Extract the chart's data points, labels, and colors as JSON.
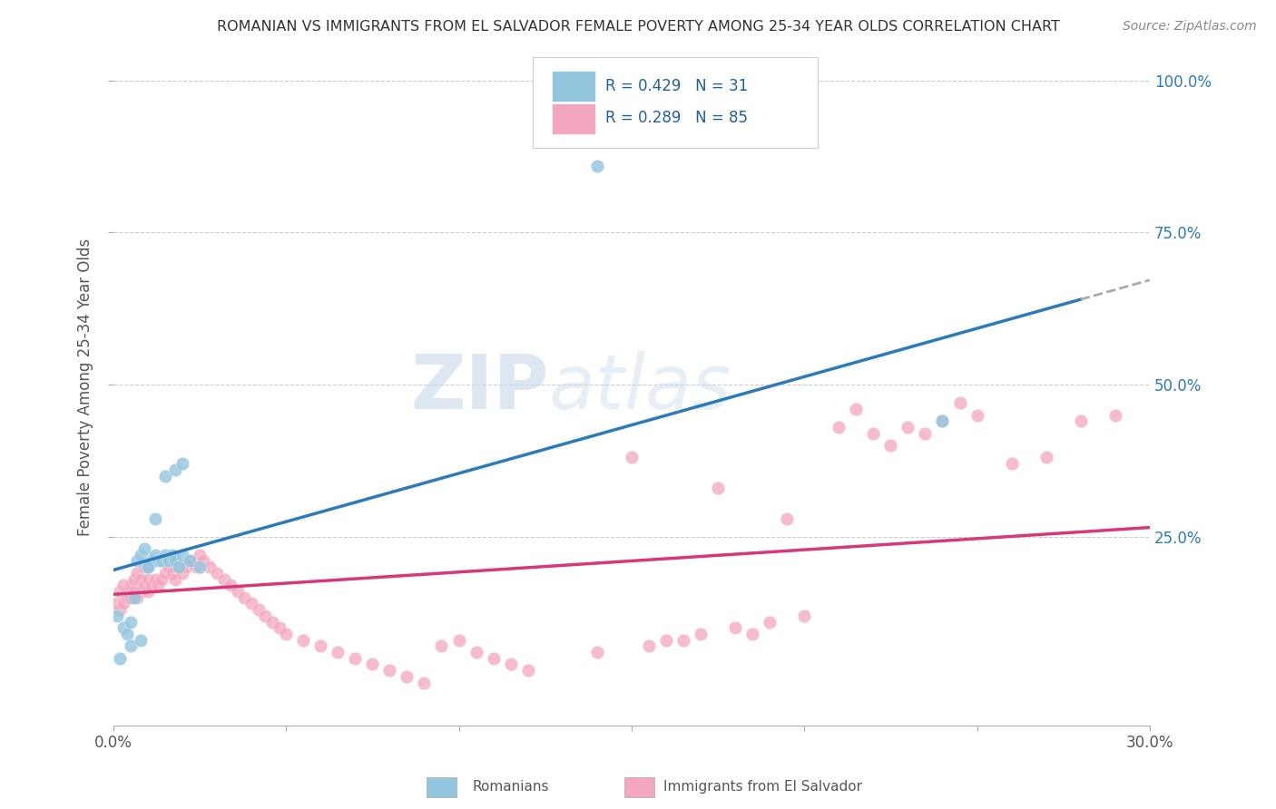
{
  "title": "ROMANIAN VS IMMIGRANTS FROM EL SALVADOR FEMALE POVERTY AMONG 25-34 YEAR OLDS CORRELATION CHART",
  "source": "Source: ZipAtlas.com",
  "ylabel": "Female Poverty Among 25-34 Year Olds",
  "ytick_labels": [
    "100.0%",
    "75.0%",
    "50.0%",
    "25.0%"
  ],
  "ytick_values": [
    1.0,
    0.75,
    0.5,
    0.25
  ],
  "watermark_text": "ZIP",
  "watermark_text2": "atlas",
  "blue_color": "#92c5de",
  "pink_color": "#f4a6be",
  "blue_line_color": "#2b7bba",
  "pink_line_color": "#d63878",
  "dashed_line_color": "#aaaaaa",
  "legend_R1": "R = 0.429",
  "legend_N1": "N = 31",
  "legend_R2": "R = 0.289",
  "legend_N2": "N = 85",
  "legend_label1": "Romanians",
  "legend_label2": "Immigrants from El Salvador",
  "blue_scatter_x": [
    0.001,
    0.002,
    0.003,
    0.004,
    0.005,
    0.006,
    0.007,
    0.008,
    0.009,
    0.01,
    0.011,
    0.012,
    0.013,
    0.014,
    0.015,
    0.016,
    0.017,
    0.018,
    0.019,
    0.02,
    0.022,
    0.025,
    0.005,
    0.008,
    0.01,
    0.012,
    0.015,
    0.018,
    0.02,
    0.14,
    0.24
  ],
  "blue_scatter_y": [
    0.12,
    0.05,
    0.1,
    0.09,
    0.11,
    0.15,
    0.21,
    0.22,
    0.23,
    0.2,
    0.21,
    0.22,
    0.21,
    0.21,
    0.22,
    0.21,
    0.22,
    0.21,
    0.2,
    0.22,
    0.21,
    0.2,
    0.07,
    0.08,
    0.2,
    0.28,
    0.35,
    0.36,
    0.37,
    0.86,
    0.44
  ],
  "pink_scatter_x": [
    0.001,
    0.002,
    0.002,
    0.003,
    0.003,
    0.004,
    0.004,
    0.005,
    0.005,
    0.006,
    0.006,
    0.007,
    0.007,
    0.008,
    0.008,
    0.009,
    0.009,
    0.01,
    0.01,
    0.011,
    0.012,
    0.013,
    0.014,
    0.015,
    0.016,
    0.017,
    0.018,
    0.019,
    0.02,
    0.021,
    0.022,
    0.024,
    0.025,
    0.026,
    0.028,
    0.03,
    0.032,
    0.034,
    0.036,
    0.038,
    0.04,
    0.042,
    0.044,
    0.046,
    0.048,
    0.05,
    0.055,
    0.06,
    0.065,
    0.07,
    0.075,
    0.08,
    0.085,
    0.09,
    0.095,
    0.1,
    0.105,
    0.11,
    0.115,
    0.12,
    0.14,
    0.15,
    0.16,
    0.17,
    0.18,
    0.19,
    0.2,
    0.21,
    0.22,
    0.23,
    0.24,
    0.25,
    0.26,
    0.27,
    0.28,
    0.29,
    0.195,
    0.215,
    0.225,
    0.235,
    0.155,
    0.165,
    0.175,
    0.185,
    0.245
  ],
  "pink_scatter_y": [
    0.14,
    0.13,
    0.16,
    0.14,
    0.17,
    0.15,
    0.16,
    0.15,
    0.17,
    0.16,
    0.18,
    0.15,
    0.19,
    0.16,
    0.18,
    0.17,
    0.2,
    0.18,
    0.16,
    0.17,
    0.18,
    0.17,
    0.18,
    0.19,
    0.2,
    0.19,
    0.18,
    0.2,
    0.19,
    0.2,
    0.21,
    0.2,
    0.22,
    0.21,
    0.2,
    0.19,
    0.18,
    0.17,
    0.16,
    0.15,
    0.14,
    0.13,
    0.12,
    0.11,
    0.1,
    0.09,
    0.08,
    0.07,
    0.06,
    0.05,
    0.04,
    0.03,
    0.02,
    0.01,
    0.07,
    0.08,
    0.06,
    0.05,
    0.04,
    0.03,
    0.06,
    0.38,
    0.08,
    0.09,
    0.1,
    0.11,
    0.12,
    0.43,
    0.42,
    0.43,
    0.44,
    0.45,
    0.37,
    0.38,
    0.44,
    0.45,
    0.28,
    0.46,
    0.4,
    0.42,
    0.07,
    0.08,
    0.33,
    0.09,
    0.47
  ],
  "blue_line_x0": 0.0,
  "blue_line_y0": 0.195,
  "blue_line_x1": 0.28,
  "blue_line_y1": 0.64,
  "pink_line_x0": 0.0,
  "pink_line_y0": 0.155,
  "pink_line_x1": 0.3,
  "pink_line_y1": 0.265,
  "xlim": [
    0.0,
    0.3
  ],
  "ylim": [
    -0.06,
    1.05
  ],
  "xtick_positions": [
    0.0,
    0.05,
    0.1,
    0.15,
    0.2,
    0.25,
    0.3
  ]
}
